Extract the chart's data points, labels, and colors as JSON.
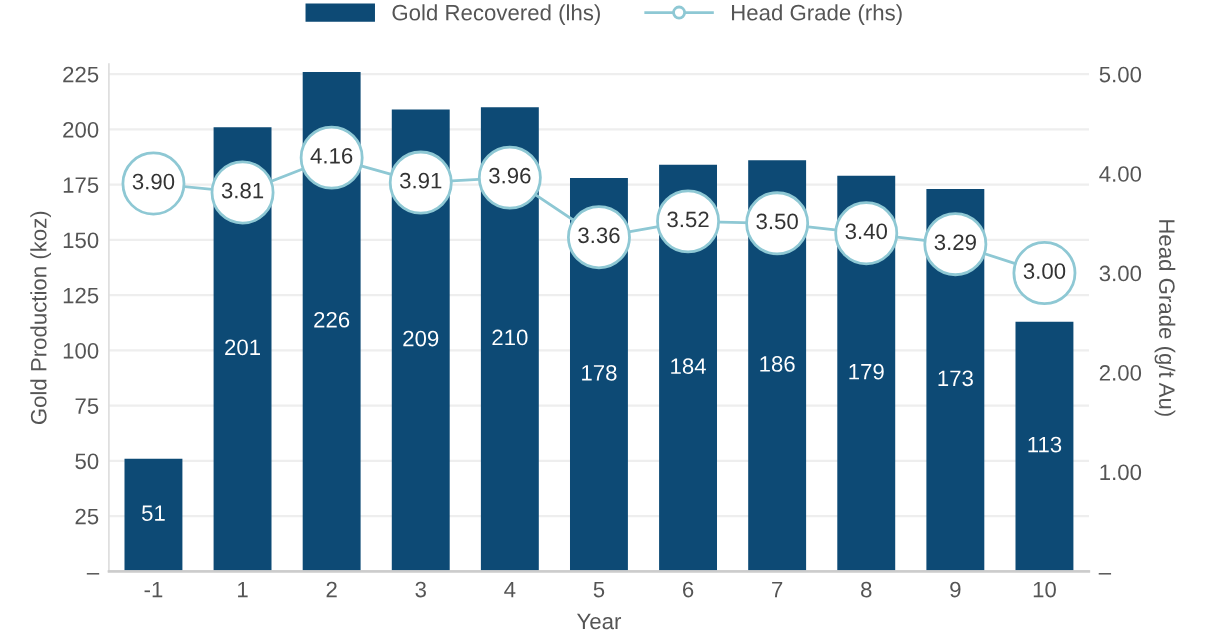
{
  "chart_data": {
    "type": "bar",
    "categories": [
      "-1",
      "1",
      "2",
      "3",
      "4",
      "5",
      "6",
      "7",
      "8",
      "9",
      "10"
    ],
    "series": [
      {
        "name": "Gold Recovered (lhs)",
        "color": "#0d4a75",
        "values": [
          51,
          201,
          226,
          209,
          210,
          178,
          184,
          186,
          179,
          173,
          113
        ]
      },
      {
        "name": "Head Grade (rhs)",
        "type": "line",
        "axis": "y2",
        "color": "#8ec8d4",
        "marker": "circle",
        "values": [
          3.9,
          3.81,
          4.16,
          3.91,
          3.96,
          3.36,
          3.52,
          3.5,
          3.4,
          3.29,
          3.0
        ],
        "value_labels": [
          "3.90",
          "3.81",
          "4.16",
          "3.91",
          "3.96",
          "3.36",
          "3.52",
          "3.50",
          "3.40",
          "3.29",
          "3.00"
        ]
      }
    ],
    "xlabel": "Year",
    "ylabel": "Gold Production (koz)",
    "y2label": "Head Grade (g/t Au)",
    "ylim": [
      0,
      229.5
    ],
    "yticks": [
      {
        "value": 0,
        "label": "–"
      },
      25,
      50,
      75,
      100,
      125,
      150,
      175,
      200,
      225
    ],
    "y2lim": [
      0,
      5.1
    ],
    "y2ticks": [
      {
        "value": 0,
        "label": "–"
      },
      {
        "value": 1,
        "label": "1.00"
      },
      {
        "value": 2,
        "label": "2.00"
      },
      {
        "value": 3,
        "label": "3.00"
      },
      {
        "value": 4,
        "label": "4.00"
      },
      {
        "value": 5,
        "label": "5.00"
      }
    ],
    "grid": "y",
    "legend": "top",
    "data_labels": true
  }
}
